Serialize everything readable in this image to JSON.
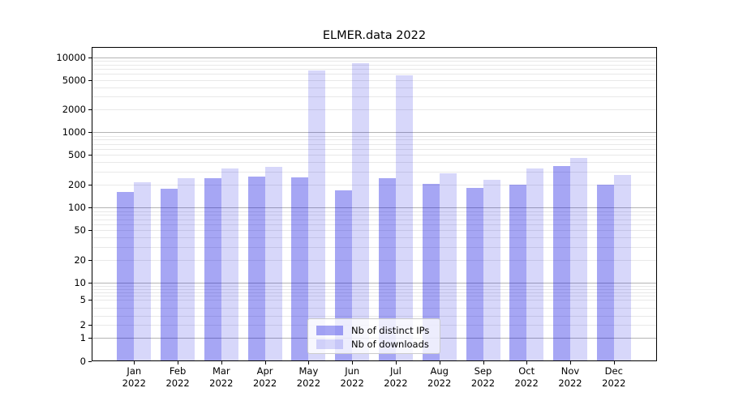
{
  "title": "ELMER.data 2022",
  "colors": {
    "bar_ips": "rgba(0,0,224,0.35)",
    "bar_downloads": "rgba(0,0,224,0.155)",
    "grid_major": "#b4b4b4",
    "grid_minor": "#e8e8e8",
    "spine": "#000000",
    "legend_border": "#cccccc"
  },
  "legend": {
    "items": [
      {
        "label": "Nb of distinct IPs"
      },
      {
        "label": "Nb of downloads"
      }
    ]
  },
  "chart_data": {
    "type": "bar",
    "title": "ELMER.data 2022",
    "categories": [
      "Jan 2022",
      "Feb 2022",
      "Mar 2022",
      "Apr 2022",
      "May 2022",
      "Jun 2022",
      "Jul 2022",
      "Aug 2022",
      "Sep 2022",
      "Oct 2022",
      "Nov 2022",
      "Dec 2022"
    ],
    "series": [
      {
        "name": "Nb of distinct IPs",
        "values": [
          160,
          180,
          245,
          260,
          250,
          170,
          245,
          205,
          185,
          200,
          360,
          200
        ]
      },
      {
        "name": "Nb of downloads",
        "values": [
          220,
          245,
          330,
          350,
          6600,
          8400,
          5700,
          285,
          235,
          330,
          460,
          270
        ]
      }
    ],
    "xlabel": "",
    "ylabel": "",
    "yscale": "symlog",
    "yticks": [
      10000,
      5000,
      2000,
      1000,
      500,
      200,
      100,
      50,
      20,
      10,
      5,
      2,
      1,
      0
    ],
    "ylim": [
      0,
      13500
    ],
    "grid": "both",
    "legend_position": "lower center"
  }
}
